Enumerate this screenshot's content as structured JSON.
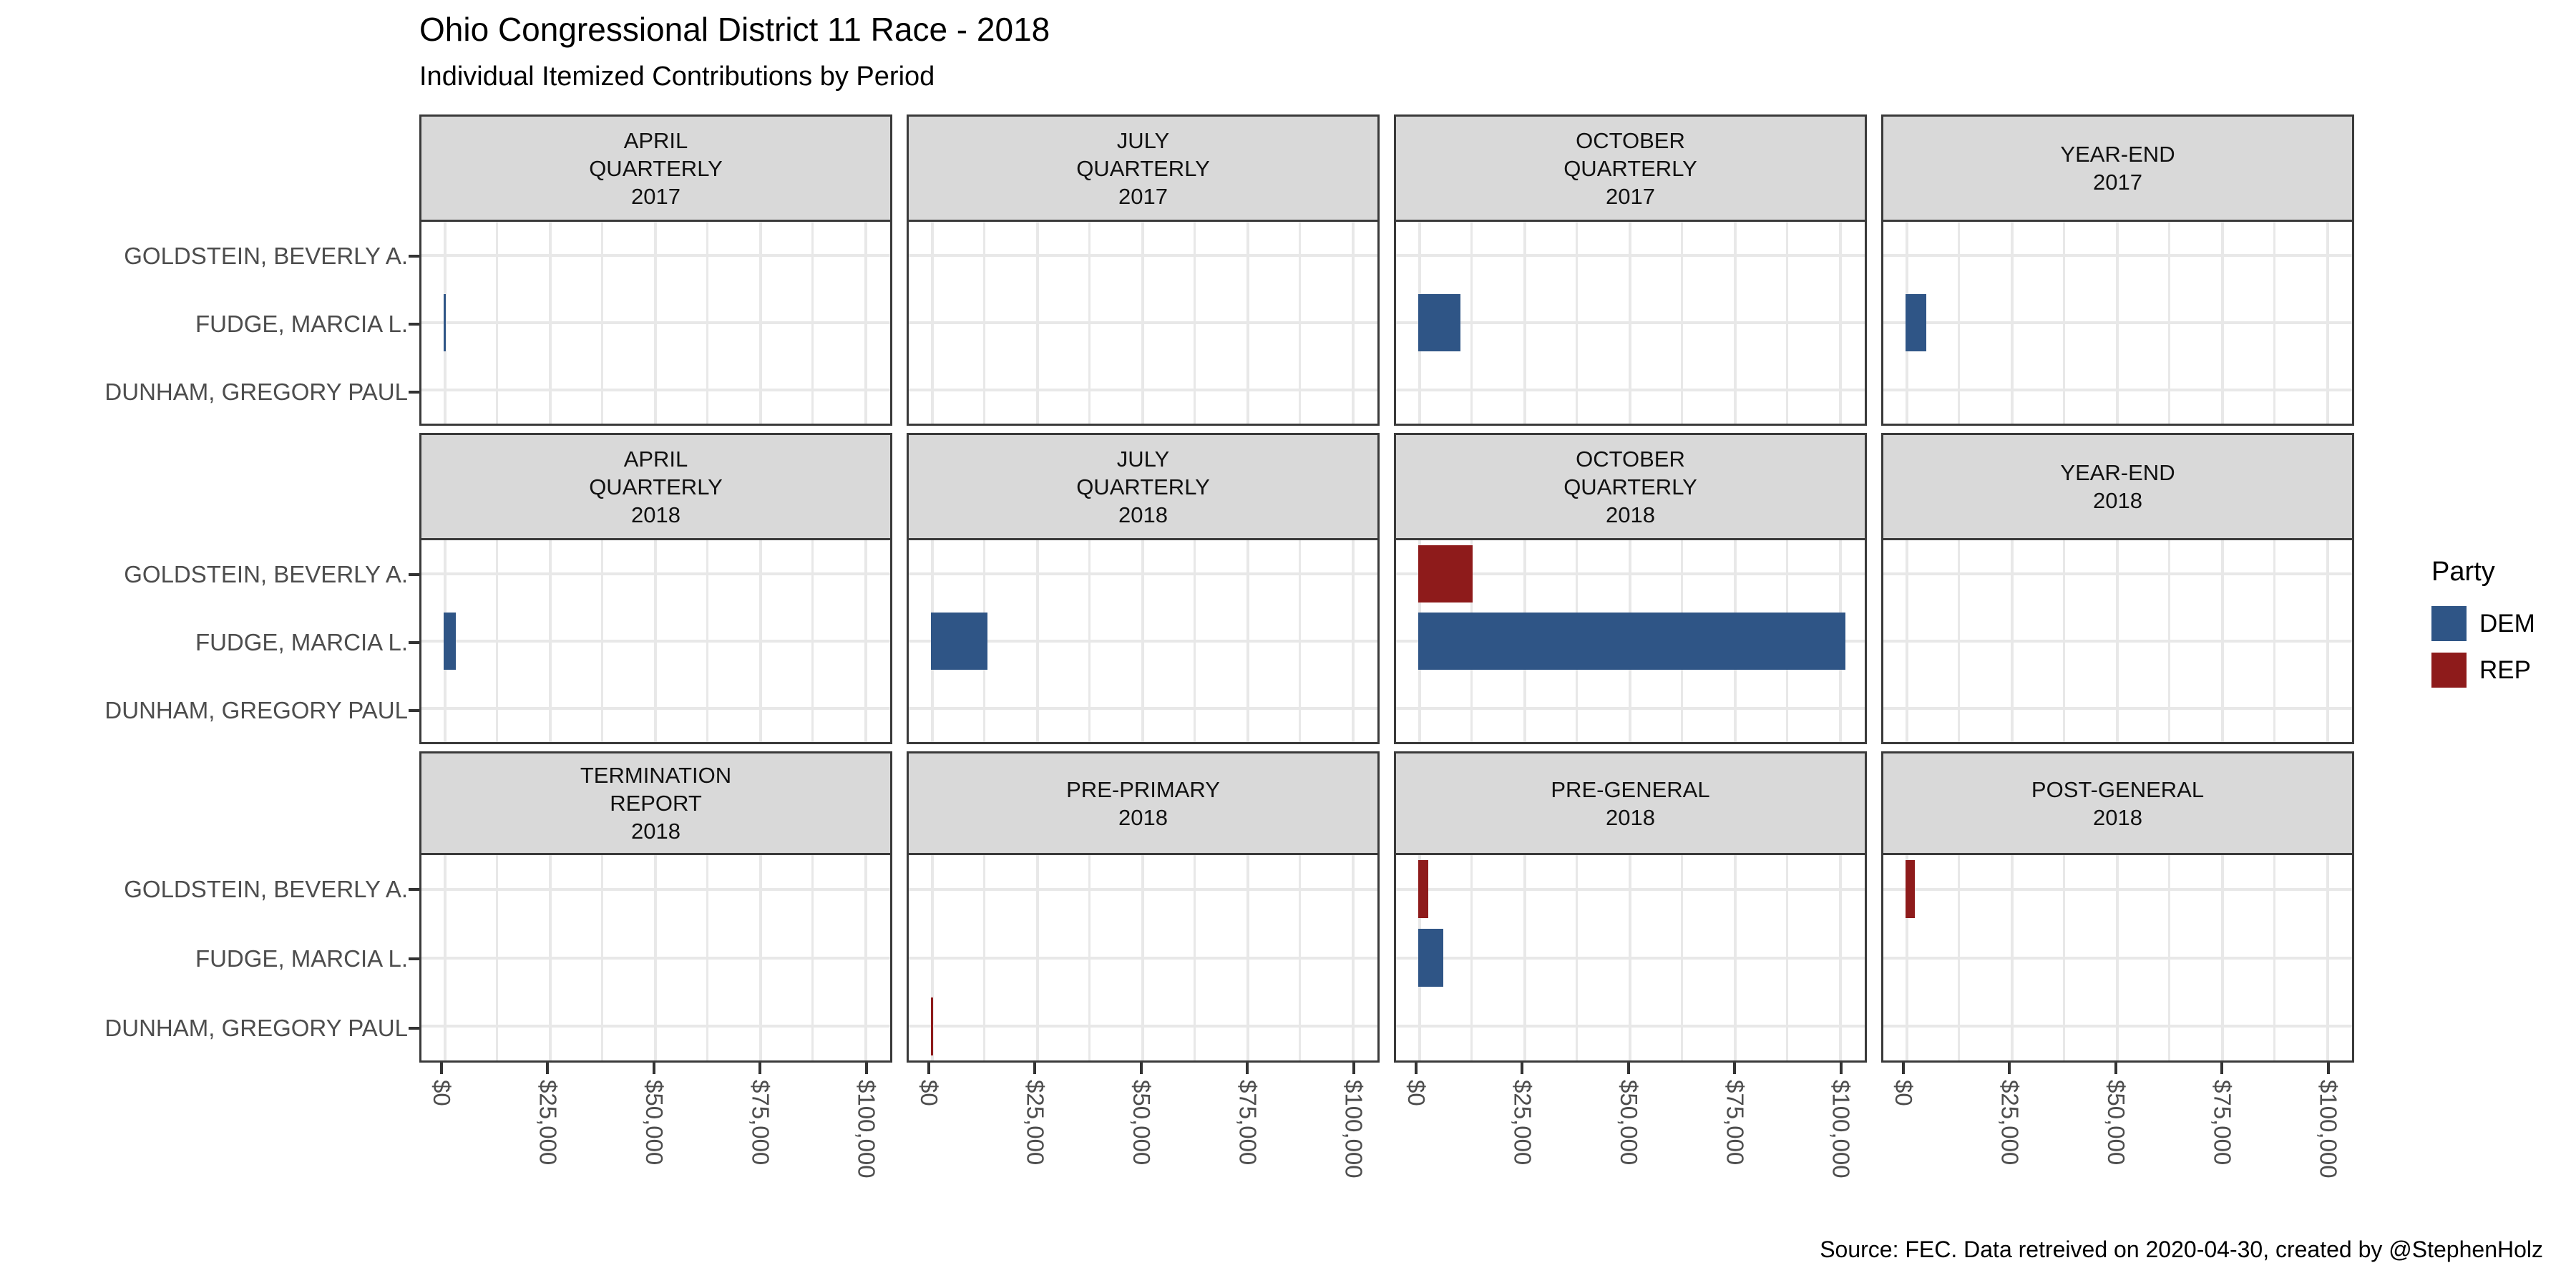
{
  "title": "Ohio Congressional District 11 Race - 2018",
  "subtitle": "Individual Itemized Contributions by Period",
  "caption": "Source: FEC. Data retreived on 2020-04-30, created by @StephenHolz",
  "legend": {
    "title": "Party",
    "items": [
      {
        "label": "DEM",
        "color": "#2F5586"
      },
      {
        "label": "REP",
        "color": "#8E1B1B"
      }
    ]
  },
  "colors": {
    "dem": "#2F5586",
    "rep": "#8E1B1B",
    "strip_background": "#d9d9d9",
    "panel_border": "#3a3a3a",
    "gridline": "#e8e8e8",
    "axis_text": "#4d4d4d"
  },
  "chart_data": {
    "type": "bar",
    "orientation": "horizontal",
    "grid": "on",
    "legend_position": "right",
    "candidates": [
      "GOLDSTEIN, BEVERLY A.",
      "FUDGE, MARCIA L.",
      "DUNHAM, GREGORY PAUL"
    ],
    "x_ticks": [
      "$0",
      "$25,000",
      "$50,000",
      "$75,000",
      "$100,000"
    ],
    "x_tick_values": [
      0,
      25000,
      50000,
      75000,
      100000
    ],
    "xlim": [
      -5000,
      106000
    ],
    "minor_grid_step": 12500,
    "facets": [
      {
        "label_lines": [
          "APRIL",
          "QUARTERLY",
          "2017"
        ],
        "bars": [
          {
            "candidate": "FUDGE, MARCIA L.",
            "party": "DEM",
            "value": 500
          }
        ]
      },
      {
        "label_lines": [
          "JULY",
          "QUARTERLY",
          "2017"
        ],
        "bars": []
      },
      {
        "label_lines": [
          "OCTOBER",
          "QUARTERLY",
          "2017"
        ],
        "bars": [
          {
            "candidate": "FUDGE, MARCIA L.",
            "party": "DEM",
            "value": 10000
          }
        ]
      },
      {
        "label_lines": [
          "YEAR-END",
          "2017"
        ],
        "bars": [
          {
            "candidate": "FUDGE, MARCIA L.",
            "party": "DEM",
            "value": 5000
          }
        ]
      },
      {
        "label_lines": [
          "APRIL",
          "QUARTERLY",
          "2018"
        ],
        "bars": [
          {
            "candidate": "FUDGE, MARCIA L.",
            "party": "DEM",
            "value": 3000
          }
        ]
      },
      {
        "label_lines": [
          "JULY",
          "QUARTERLY",
          "2018"
        ],
        "bars": [
          {
            "candidate": "FUDGE, MARCIA L.",
            "party": "DEM",
            "value": 13500
          }
        ]
      },
      {
        "label_lines": [
          "OCTOBER",
          "QUARTERLY",
          "2018"
        ],
        "bars": [
          {
            "candidate": "GOLDSTEIN, BEVERLY A.",
            "party": "REP",
            "value": 13000
          },
          {
            "candidate": "FUDGE, MARCIA L.",
            "party": "DEM",
            "value": 101500
          }
        ]
      },
      {
        "label_lines": [
          "YEAR-END",
          "2018"
        ],
        "bars": []
      },
      {
        "label_lines": [
          "TERMINATION",
          "REPORT",
          "2018"
        ],
        "bars": []
      },
      {
        "label_lines": [
          "PRE-PRIMARY",
          "2018"
        ],
        "bars": [
          {
            "candidate": "DUNHAM, GREGORY PAUL",
            "party": "REP",
            "value": 250
          }
        ]
      },
      {
        "label_lines": [
          "PRE-GENERAL",
          "2018"
        ],
        "bars": [
          {
            "candidate": "GOLDSTEIN, BEVERLY A.",
            "party": "REP",
            "value": 2500
          },
          {
            "candidate": "FUDGE, MARCIA L.",
            "party": "DEM",
            "value": 6000
          }
        ]
      },
      {
        "label_lines": [
          "POST-GENERAL",
          "2018"
        ],
        "bars": [
          {
            "candidate": "GOLDSTEIN, BEVERLY A.",
            "party": "REP",
            "value": 2200
          }
        ]
      }
    ]
  }
}
